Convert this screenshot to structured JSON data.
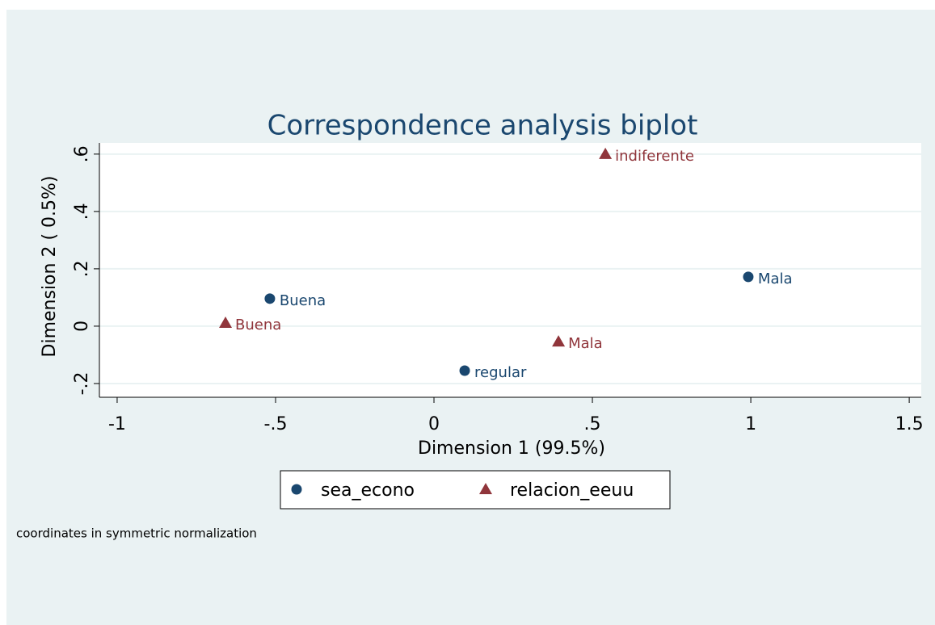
{
  "chart_data": {
    "type": "scatter",
    "title": "Correspondence analysis biplot",
    "xlabel": "Dimension 1 (99.5%)",
    "ylabel": "Dimension 2 ( 0.5%)",
    "note": "coordinates in symmetric normalization",
    "xlim": [
      -1.056,
      1.538
    ],
    "ylim": [
      -0.248,
      0.639
    ],
    "xticks": [
      -1,
      {
        "value": -0.5,
        "label": "-.5"
      },
      0,
      {
        "value": 0.5,
        "label": ".5"
      },
      1,
      1.5
    ],
    "yticks": [
      {
        "value": -0.2,
        "label": "-.2"
      },
      0,
      {
        "value": 0.2,
        "label": ".2"
      },
      {
        "value": 0.4,
        "label": ".4"
      },
      {
        "value": 0.6,
        "label": ".6"
      }
    ],
    "grid": true,
    "legend": "bottom",
    "series": [
      {
        "name": "sea_econo",
        "color": "#1a476f",
        "marker": "circle",
        "x": [
          -0.518,
          0.097,
          0.992
        ],
        "values": [
          0.096,
          -0.155,
          0.172
        ],
        "labels": [
          "Buena",
          "regular",
          "Mala"
        ]
      },
      {
        "name": "relacion_eeuu",
        "color": "#90353b",
        "marker": "triangle",
        "x": [
          -0.658,
          0.393,
          0.541
        ],
        "values": [
          0.011,
          -0.054,
          0.6
        ],
        "labels": [
          "Buena",
          "Mala",
          "indiferente"
        ]
      }
    ]
  }
}
